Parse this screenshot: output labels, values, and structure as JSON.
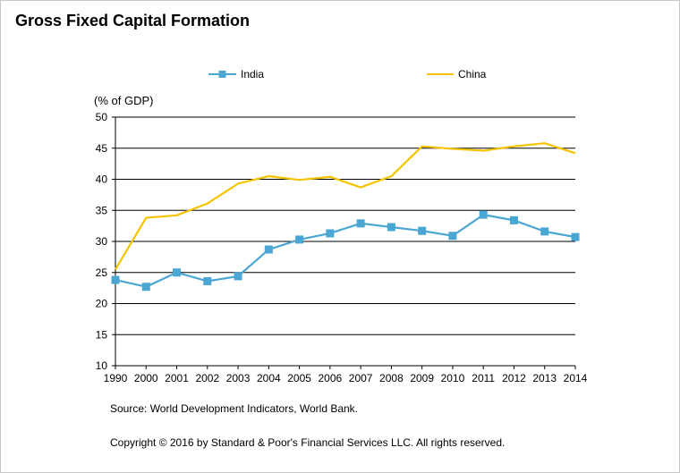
{
  "title": "Gross Fixed Capital Formation",
  "source": "Source: World Development Indicators, World Bank.",
  "copyright": "Copyright © 2016 by Standard & Poor's Financial Services LLC. All rights reserved.",
  "colors": {
    "india": "#4aa6d2",
    "china": "#f5c400",
    "grid": "#000000"
  },
  "chart_data": {
    "type": "line",
    "ylabel": "(% of GDP)",
    "ylim": [
      10,
      50
    ],
    "yticks": [
      10,
      15,
      20,
      25,
      30,
      35,
      40,
      45,
      50
    ],
    "grid": true,
    "legend": "top",
    "categories": [
      "1990",
      "2000",
      "2001",
      "2002",
      "2003",
      "2004",
      "2005",
      "2006",
      "2007",
      "2008",
      "2009",
      "2010",
      "2011",
      "2012",
      "2013",
      "2014"
    ],
    "series": [
      {
        "name": "India",
        "marker": "square",
        "values": [
          23.8,
          22.7,
          25.0,
          23.6,
          24.4,
          28.7,
          30.3,
          31.3,
          32.9,
          32.3,
          31.7,
          30.9,
          34.3,
          33.4,
          31.6,
          30.7
        ]
      },
      {
        "name": "China",
        "marker": "none",
        "values": [
          25.5,
          33.8,
          34.2,
          36.1,
          39.3,
          40.5,
          39.9,
          40.4,
          38.7,
          40.5,
          45.3,
          44.9,
          44.6,
          45.3,
          45.8,
          44.2
        ]
      }
    ]
  }
}
